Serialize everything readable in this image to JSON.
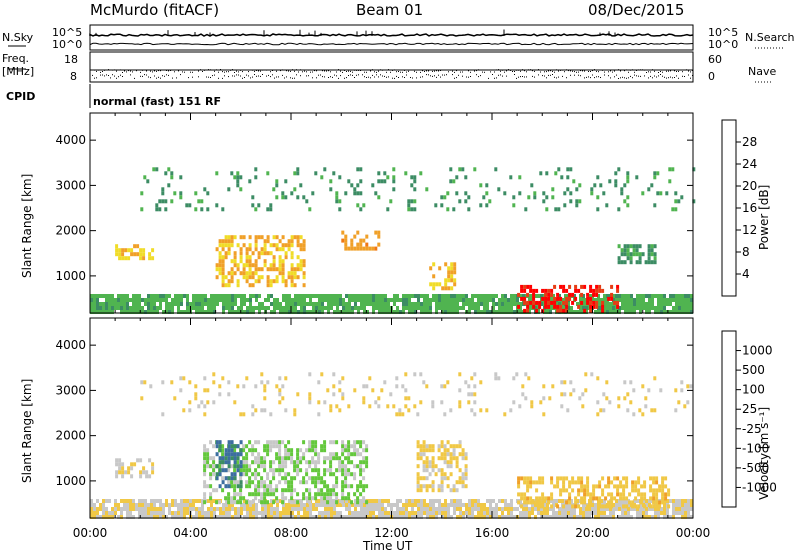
{
  "header": {
    "station": "McMurdo (fitACF)",
    "beam": "Beam 01",
    "date": "08/Dec/2015"
  },
  "top_panels": {
    "nsky_label": "N.Sky",
    "nsky_ticks": [
      "10^5",
      "10^0"
    ],
    "nsearch_label": "N.Search",
    "nsearch_ticks": [
      "10^5",
      "10^0"
    ],
    "freq_label_line1": "Freq.",
    "freq_label_line2": "[MHz]",
    "freq_ticks": [
      "18",
      "8"
    ],
    "nave_label": "Nave",
    "nave_ticks": [
      "60",
      "0"
    ],
    "cpid_label": "CPID",
    "cpid_value": "normal (fast) 151 RF"
  },
  "colors": {
    "power_scale": [
      "#0000ff",
      "#2850c8",
      "#3c8c64",
      "#50b450",
      "#f0dc28",
      "#f0a028",
      "#f07814",
      "#e63c14",
      "#ff0000"
    ],
    "velocity_scale": [
      "#1e3cc8",
      "#3c6ea0",
      "#3c8c64",
      "#64c83c",
      "#c8c8c8",
      "#f0c846",
      "#f0a028",
      "#f07814",
      "#ff0000"
    ]
  },
  "chart_data": [
    {
      "type": "heatmap",
      "name": "Power",
      "xlabel": "",
      "ylabel": "Slant Range [km]",
      "x_ticks": [
        "00:00",
        "04:00",
        "08:00",
        "12:00",
        "16:00",
        "20:00",
        "00:00"
      ],
      "y_ticks": [
        "1000",
        "2000",
        "3000",
        "4000"
      ],
      "ylim": [
        180,
        4600
      ],
      "colorbar_label": "Power [dB]",
      "colorbar_ticks": [
        "4",
        "8",
        "12",
        "16",
        "20",
        "24",
        "28"
      ],
      "colorbar_range": [
        0,
        32
      ],
      "regions": [
        {
          "t0": 0.0,
          "t1": 24.0,
          "r0": 200,
          "r1": 600,
          "value": 12
        },
        {
          "t0": 17.0,
          "t1": 21.0,
          "r0": 250,
          "r1": 800,
          "value": 29
        },
        {
          "t0": 5.0,
          "t1": 8.5,
          "r0": 800,
          "r1": 1900,
          "value": 18
        },
        {
          "t0": 1.0,
          "t1": 2.5,
          "r0": 1400,
          "r1": 1700,
          "value": 17
        },
        {
          "t0": 10.0,
          "t1": 11.5,
          "r0": 1600,
          "r1": 2000,
          "value": 20
        },
        {
          "t0": 13.5,
          "t1": 14.5,
          "r0": 700,
          "r1": 1300,
          "value": 18
        },
        {
          "t0": 21.0,
          "t1": 22.5,
          "r0": 1300,
          "r1": 1700,
          "value": 10
        },
        {
          "t0": 2.0,
          "t1": 24.0,
          "r0": 2500,
          "r1": 3400,
          "value": 10
        }
      ]
    },
    {
      "type": "heatmap",
      "name": "Velocity",
      "xlabel": "Time UT",
      "ylabel": "Slant Range [km]",
      "x_ticks": [
        "00:00",
        "04:00",
        "08:00",
        "12:00",
        "16:00",
        "20:00",
        "00:00"
      ],
      "y_ticks": [
        "1000",
        "2000",
        "3000",
        "4000"
      ],
      "ylim": [
        180,
        4600
      ],
      "colorbar_label": "Velocity [m s⁻¹]",
      "colorbar_ticks": [
        "1000",
        "500",
        "100",
        "25",
        "-25",
        "-100",
        "-500",
        "-1000"
      ],
      "colorbar_range": [
        -1200,
        1200
      ],
      "regions": [
        {
          "t0": 0.0,
          "t1": 24.0,
          "r0": 200,
          "r1": 600,
          "value": -100
        },
        {
          "t0": 17.0,
          "t1": 23.0,
          "r0": 400,
          "r1": 1100,
          "value": -300
        },
        {
          "t0": 4.5,
          "t1": 11.0,
          "r0": 500,
          "r1": 1900,
          "value": 150
        },
        {
          "t0": 5.0,
          "t1": 6.0,
          "r0": 900,
          "r1": 1900,
          "value": 700
        },
        {
          "t0": 1.0,
          "t1": 2.5,
          "r0": 1100,
          "r1": 1500,
          "value": -80
        },
        {
          "t0": 13.0,
          "t1": 15.0,
          "r0": 800,
          "r1": 1900,
          "value": -200
        },
        {
          "t0": 2.0,
          "t1": 24.0,
          "r0": 2500,
          "r1": 3400,
          "value": -150
        }
      ]
    }
  ]
}
